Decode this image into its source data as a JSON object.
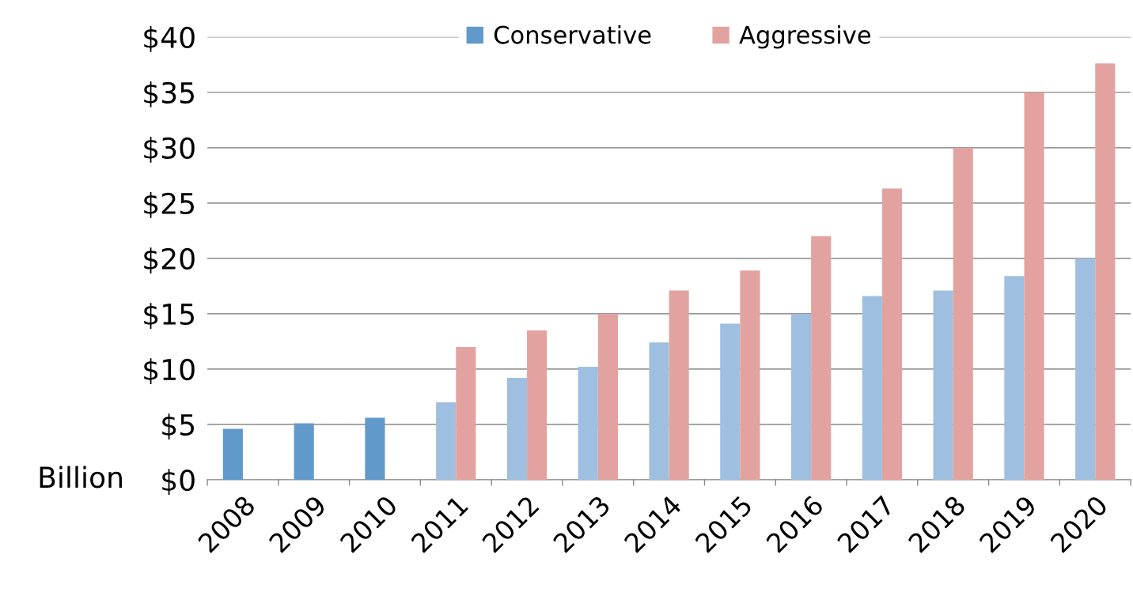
{
  "chart_data": {
    "type": "bar",
    "ylabel": "Billion",
    "categories": [
      "2008",
      "2009",
      "2010",
      "2011",
      "2012",
      "2013",
      "2014",
      "2015",
      "2016",
      "2017",
      "2018",
      "2019",
      "2020"
    ],
    "series": [
      {
        "name": "Conservative",
        "color": "#6199cb",
        "colors": [
          "#6199cb",
          "#6199cb",
          "#6199cb",
          "#9ebfdf",
          "#9ebfdf",
          "#9ebfdf",
          "#9ebfdf",
          "#9ebfdf",
          "#9ebfdf",
          "#9ebfdf",
          "#9ebfdf",
          "#9ebfdf",
          "#9ebfdf"
        ],
        "values": [
          4.6,
          5.1,
          5.6,
          7.0,
          9.2,
          10.2,
          12.4,
          14.1,
          15.0,
          16.6,
          17.1,
          18.4,
          20.0
        ]
      },
      {
        "name": "Aggressive",
        "color": "#e2a3a0",
        "values": [
          null,
          null,
          null,
          12.0,
          13.5,
          15.0,
          17.1,
          18.9,
          22.0,
          26.3,
          30.0,
          35.0,
          37.6
        ]
      }
    ],
    "ylim": [
      0,
      40
    ],
    "yticks": [
      {
        "value": 0,
        "label": "$0"
      },
      {
        "value": 5,
        "label": "$5"
      },
      {
        "value": 10,
        "label": "$10"
      },
      {
        "value": 15,
        "label": "$15"
      },
      {
        "value": 20,
        "label": "$20"
      },
      {
        "value": 25,
        "label": "$25"
      },
      {
        "value": 30,
        "label": "$30"
      },
      {
        "value": 35,
        "label": "$35"
      },
      {
        "value": 40,
        "label": "$40"
      }
    ],
    "grid": "y",
    "legend": "top"
  }
}
